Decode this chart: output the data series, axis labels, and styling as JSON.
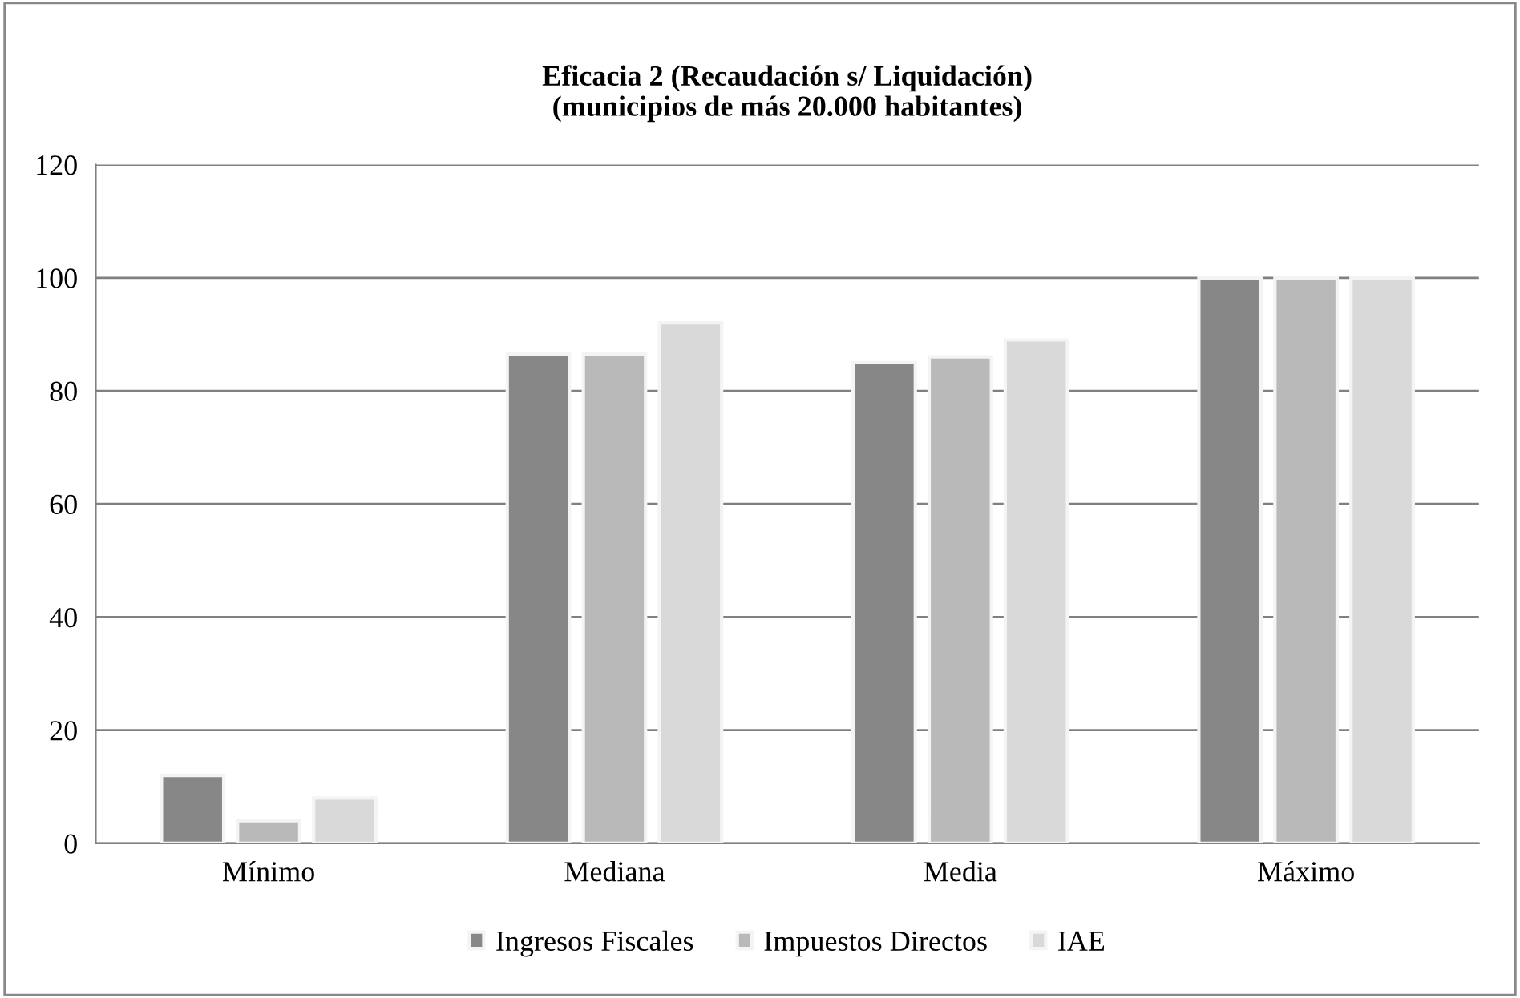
{
  "chart_data": {
    "type": "bar",
    "title": "Eficacia 2 (Recaudación s/ Liquidación)\n(municipios de más 20.000 habitantes)",
    "categories": [
      "Mínimo",
      "Mediana",
      "Media",
      "Máximo"
    ],
    "series": [
      {
        "name": "Ingresos Fiscales",
        "color": "#878787",
        "values": [
          12,
          86.5,
          85,
          100
        ]
      },
      {
        "name": "Impuestos Directos",
        "color": "#b9b9b9",
        "values": [
          4,
          86.5,
          86,
          100
        ]
      },
      {
        "name": "IAE",
        "color": "#d9d9d9",
        "values": [
          8,
          92,
          89,
          100
        ]
      }
    ],
    "ylim": [
      0,
      120
    ],
    "yticks": [
      0,
      20,
      40,
      60,
      80,
      100,
      120
    ],
    "grid": "y",
    "legend": "bottom"
  }
}
